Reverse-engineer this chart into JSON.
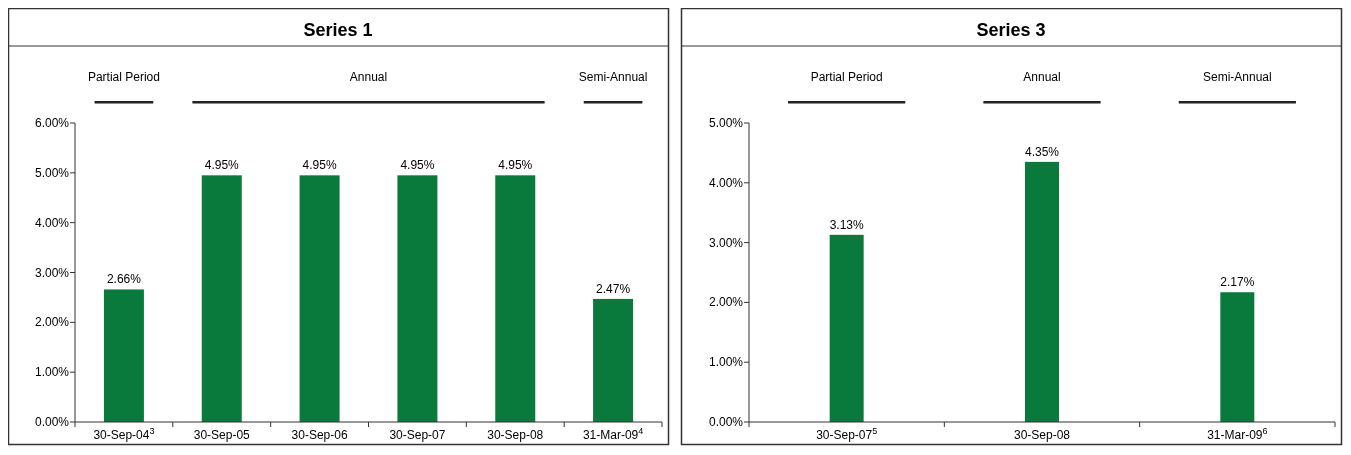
{
  "chart_data": [
    {
      "type": "bar",
      "title": "Series 1",
      "categories": [
        "30-Sep-04$^{3}$",
        "30-Sep-05",
        "30-Sep-06",
        "30-Sep-07",
        "30-Sep-08",
        "31-Mar-09$^{4}$"
      ],
      "series": [
        {
          "color": "#0a7a3c",
          "values": [
            2.66,
            4.95,
            4.95,
            4.95,
            4.95,
            2.47
          ],
          "value_labels": [
            "2.66%",
            "4.95%",
            "4.95%",
            "4.95%",
            "4.95%",
            "2.47%"
          ]
        }
      ],
      "ylim": [
        0,
        6
      ],
      "yticks": [
        {
          "value": 0,
          "label": "0.00%"
        },
        {
          "value": 1,
          "label": "1.00%"
        },
        {
          "value": 2,
          "label": "2.00%"
        },
        {
          "value": 3,
          "label": "3.00%"
        },
        {
          "value": 4,
          "label": "4.00%"
        },
        {
          "value": 5,
          "label": "5.00%"
        },
        {
          "value": 6,
          "label": "6.00%"
        }
      ],
      "annotations": [
        "Partial Period",
        "Annual",
        "Semi-Annual"
      ]
    },
    {
      "type": "bar",
      "title": "Series 3",
      "categories": [
        "30-Sep-07$^{5}$",
        "30-Sep-08",
        "31-Mar-09$^{6}$"
      ],
      "series": [
        {
          "color": "#0a7a3c",
          "values": [
            3.13,
            4.35,
            2.17
          ],
          "value_labels": [
            "3.13%",
            "4.35%",
            "2.17%"
          ]
        }
      ],
      "ylim": [
        0,
        5
      ],
      "yticks": [
        {
          "value": 0,
          "label": "0.00%"
        },
        {
          "value": 1,
          "label": "1.00%"
        },
        {
          "value": 2,
          "label": "2.00%"
        },
        {
          "value": 3,
          "label": "3.00%"
        },
        {
          "value": 4,
          "label": "4.00%"
        },
        {
          "value": 5,
          "label": "5.00%"
        }
      ],
      "annotations": [
        "Partial Period",
        "Annual",
        "Semi-Annual"
      ]
    }
  ]
}
